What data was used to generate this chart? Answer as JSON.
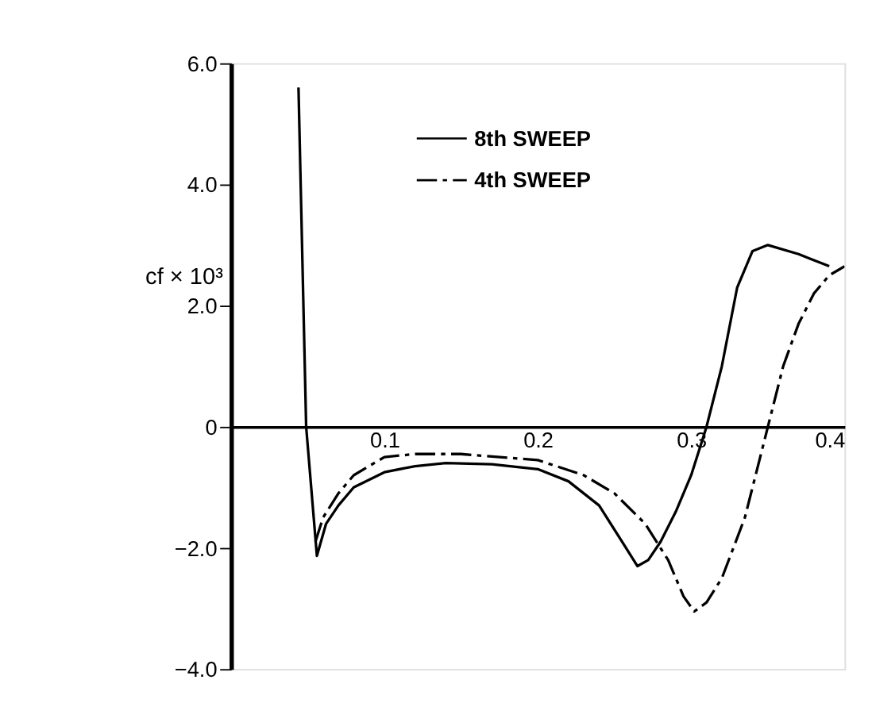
{
  "chart_data": {
    "type": "line",
    "ylabel": "cf × 10³",
    "xlim": [
      0,
      0.4
    ],
    "xticks": [
      0.1,
      0.2,
      0.3,
      0.4
    ],
    "ylim": [
      -4.0,
      6.0
    ],
    "yticks": [
      {
        "value": -4,
        "label": "−4.0"
      },
      {
        "value": -2,
        "label": "−2.0"
      },
      0,
      {
        "value": 2,
        "label": "2.0"
      },
      {
        "value": 4,
        "label": "4.0"
      },
      {
        "value": 6,
        "label": "6.0"
      }
    ],
    "grid": false,
    "legend": "top",
    "marker": "none",
    "series": [
      {
        "name": "8th SWEEP",
        "color": "#000000",
        "line_style": "solid",
        "x": [
          0.044,
          0.049,
          0.056,
          0.062,
          0.07,
          0.08,
          0.1,
          0.12,
          0.14,
          0.17,
          0.2,
          0.22,
          0.24,
          0.255,
          0.265,
          0.272,
          0.28,
          0.29,
          0.3,
          0.31,
          0.32,
          0.33,
          0.34,
          0.35,
          0.37,
          0.39
        ],
        "values": [
          5.6,
          0.0,
          -2.13,
          -1.6,
          -1.3,
          -1.0,
          -0.75,
          -0.65,
          -0.6,
          -0.62,
          -0.7,
          -0.9,
          -1.3,
          -1.9,
          -2.3,
          -2.2,
          -1.9,
          -1.4,
          -0.8,
          0.0,
          1.0,
          2.3,
          2.9,
          3.0,
          2.85,
          2.65
        ]
      },
      {
        "name": "4th SWEEP",
        "color": "#000000",
        "line_style": "dashdot",
        "x": [
          0.055,
          0.06,
          0.07,
          0.08,
          0.1,
          0.12,
          0.15,
          0.2,
          0.23,
          0.25,
          0.27,
          0.285,
          0.295,
          0.302,
          0.31,
          0.32,
          0.335,
          0.345,
          0.35,
          0.36,
          0.37,
          0.38,
          0.39,
          0.4
        ],
        "values": [
          -1.9,
          -1.5,
          -1.1,
          -0.8,
          -0.5,
          -0.45,
          -0.45,
          -0.55,
          -0.8,
          -1.1,
          -1.6,
          -2.2,
          -2.8,
          -3.05,
          -2.9,
          -2.5,
          -1.5,
          -0.5,
          0.0,
          1.0,
          1.7,
          2.2,
          2.5,
          2.65
        ]
      }
    ]
  }
}
